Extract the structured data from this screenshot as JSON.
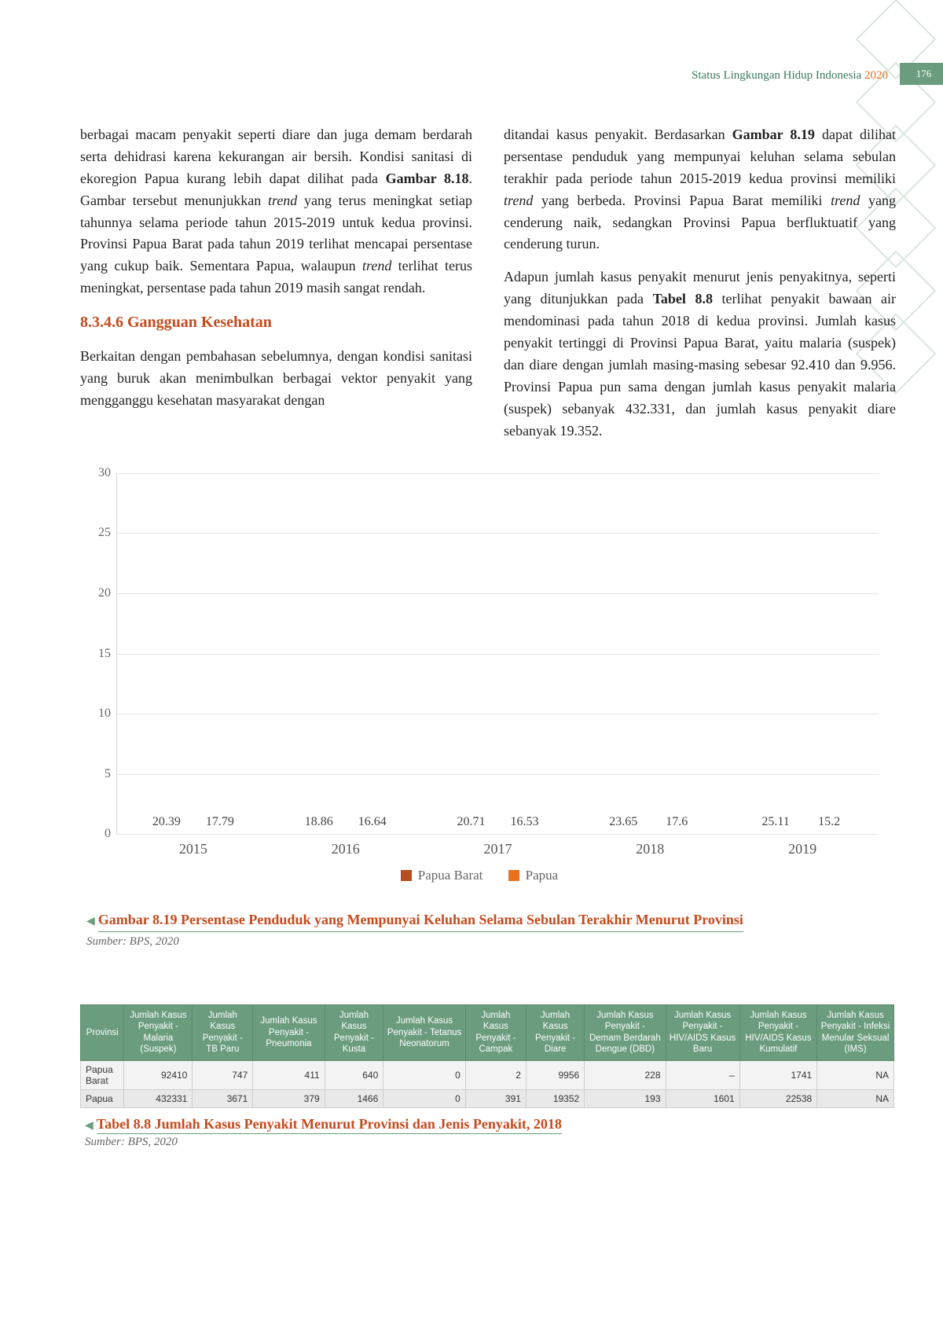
{
  "header": {
    "doc_title_prefix": "Status Lingkungan Hidup Indonesia ",
    "year": "2020",
    "page_number": "176"
  },
  "left_col": {
    "para1_html": "berbagai macam penyakit seperti diare dan juga demam berdarah serta dehidrasi karena kekurangan air bersih. Kondisi sanitasi di ekoregion Papua kurang lebih dapat dilihat pada <span class='bold'>Gambar 8.18</span>. Gambar tersebut menunjukkan <em>trend</em> yang terus meningkat setiap tahunnya selama periode tahun 2015-2019 untuk kedua provinsi. Provinsi Papua Barat pada tahun 2019 terlihat mencapai persentase yang cukup baik. Sementara Papua, walaupun <em>trend</em> terlihat terus meningkat, persentase pada tahun 2019 masih sangat rendah.",
    "section_title": "8.3.4.6 Gangguan Kesehatan",
    "para2_html": "Berkaitan dengan pembahasan sebelumnya, dengan kondisi sanitasi yang buruk akan menimbulkan berbagai vektor penyakit yang mengganggu kesehatan masyarakat dengan"
  },
  "right_col": {
    "para1_html": "ditandai kasus penyakit. Berdasarkan <span class='bold'>Gambar 8.19</span> dapat dilihat persentase penduduk yang mempunyai keluhan selama sebulan terakhir pada periode tahun 2015-2019 kedua provinsi memiliki <em>trend</em> yang berbeda. Provinsi Papua Barat memiliki <em>trend</em> yang cenderung naik, sedangkan Provinsi Papua berfluktuatif yang cenderung turun.",
    "para2_html": "Adapun jumlah kasus penyakit menurut jenis penyakitnya, seperti yang ditunjukkan pada <span class='bold'>Tabel 8.8</span> terlihat penyakit bawaan air mendominasi pada tahun 2018 di kedua provinsi. Jumlah kasus penyakit tertinggi di Provinsi Papua Barat, yaitu malaria (suspek) dan diare dengan jumlah masing-masing sebesar 92.410 dan 9.956. Provinsi Papua pun sama dengan jumlah kasus penyakit malaria (suspek) sebanyak 432.331, dan jumlah kasus penyakit diare sebanyak 19.352."
  },
  "chart": {
    "type": "grouped-bar",
    "ymax": 30,
    "yticks": [
      0,
      5,
      10,
      15,
      20,
      25,
      30
    ],
    "categories": [
      "2015",
      "2016",
      "2017",
      "2018",
      "2019"
    ],
    "series": [
      {
        "name": "Papua Barat",
        "color": "#b84c1e",
        "color_light": "#d96a3a",
        "values": [
          20.39,
          18.86,
          20.71,
          23.65,
          25.11
        ]
      },
      {
        "name": "Papua",
        "color": "#e8701f",
        "color_light": "#f79555",
        "values": [
          17.79,
          16.64,
          16.53,
          17.6,
          15.2
        ]
      }
    ],
    "legend_labels": [
      "Papua Barat",
      "Papua"
    ]
  },
  "fig_caption": {
    "title": "Gambar 8.19 Persentase Penduduk yang Mempunyai Keluhan Selama Sebulan Terakhir Menurut Provinsi",
    "source": "Sumber: BPS, 2020"
  },
  "table": {
    "columns": [
      "Provinsi",
      "Jumlah Kasus Penyakit - Malaria (Suspek)",
      "Jumlah Kasus Penyakit - TB Paru",
      "Jumlah Kasus Penyakit - Pneumonia",
      "Jumlah Kasus Penyakit - Kusta",
      "Jumlah Kasus Penyakit - Tetanus Neonatorum",
      "Jumlah Kasus Penyakit - Campak",
      "Jumlah Kasus Penyakit - Diare",
      "Jumlah Kasus Penyakit - Demam Berdarah Dengue (DBD)",
      "Jumlah Kasus Penyakit - HIV/AIDS Kasus Baru",
      "Jumlah Kasus Penyakit - HIV/AIDS Kasus Kumulatif",
      "Jumlah Kasus Penyakit - Infeksi Menular Seksual (IMS)"
    ],
    "rows": [
      [
        "Papua Barat",
        "92410",
        "747",
        "411",
        "640",
        "0",
        "2",
        "9956",
        "228",
        "–",
        "1741",
        "NA"
      ],
      [
        "Papua",
        "432331",
        "3671",
        "379",
        "1466",
        "0",
        "391",
        "19352",
        "193",
        "1601",
        "22538",
        "NA"
      ]
    ]
  },
  "tbl_caption": {
    "title": "Tabel 8.8 Jumlah Kasus Penyakit Menurut Provinsi dan Jenis Penyakit, 2018",
    "source": "Sumber: BPS, 2020"
  }
}
